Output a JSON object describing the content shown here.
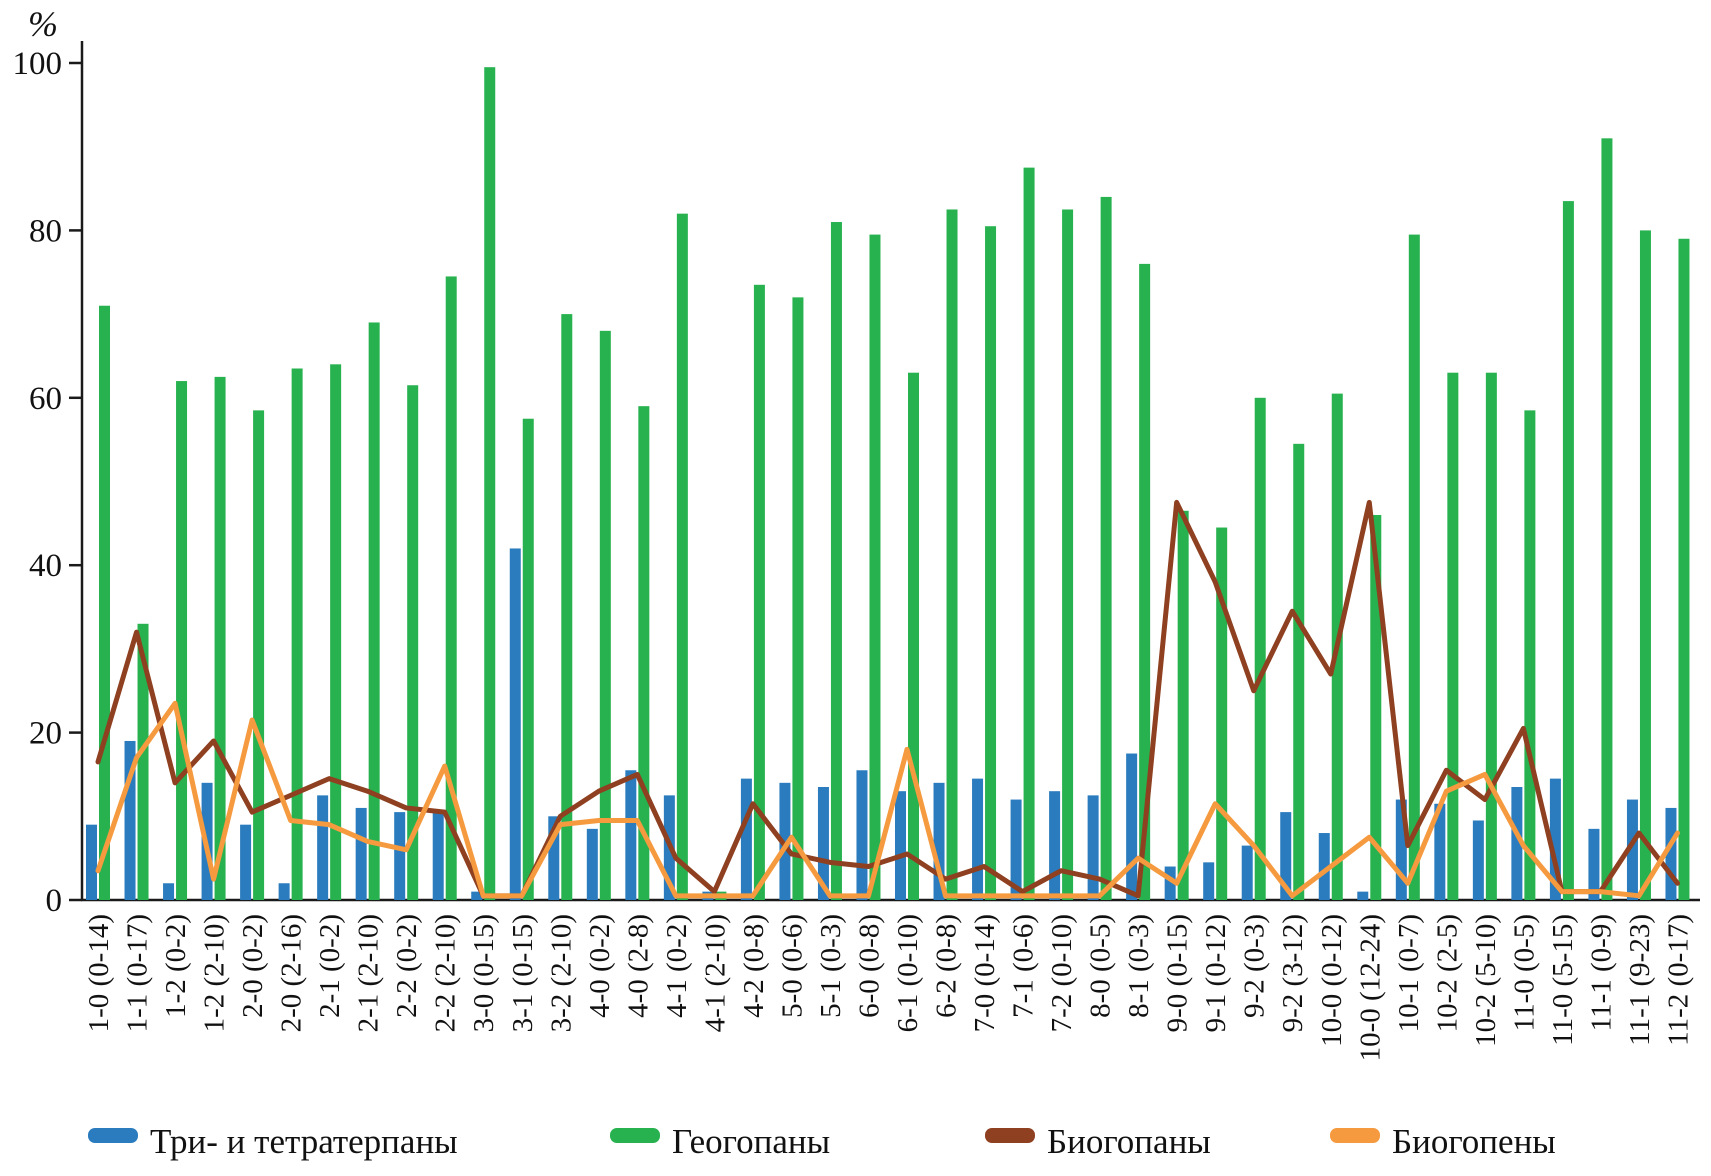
{
  "chart_data": {
    "type": "bar",
    "title": "",
    "xlabel": "",
    "ylabel": "%",
    "ylim": [
      0,
      100
    ],
    "yticks": [
      0,
      20,
      40,
      60,
      80,
      100
    ],
    "grid": false,
    "legend_position": "bottom",
    "categories": [
      "1-0 (0-14)",
      "1-1 (0-17)",
      "1-2 (0-2)",
      "1-2 (2-10)",
      "2-0 (0-2)",
      "2-0 (2-16)",
      "2-1 (0-2)",
      "2-1 (2-10)",
      "2-2 (0-2)",
      "2-2 (2-10)",
      "3-0 (0-15)",
      "3-1 (0-15)",
      "3-2 (2-10)",
      "4-0 (0-2)",
      "4-0 (2-8)",
      "4-1 (0-2)",
      "4-1 (2-10)",
      "4-2 (0-8)",
      "5-0 (0-6)",
      "5-1 (0-3)",
      "6-0 (0-8)",
      "6-1 (0-10)",
      "6-2 (0-8)",
      "7-0 (0-14)",
      "7-1 (0-6)",
      "7-2 (0-10)",
      "8-0 (0-5)",
      "8-1 (0-3)",
      "9-0 (0-15)",
      "9-1 (0-12)",
      "9-2 (0-3)",
      "9-2 (3-12)",
      "10-0 (0-12)",
      "10-0 (12-24)",
      "10-1 (0-7)",
      "10-2 (2-5)",
      "10-2 (5-10)",
      "11-0 (0-5)",
      "11-0 (5-15)",
      "11-1 (0-9)",
      "11-1 (9-23)",
      "11-2 (0-17)"
    ],
    "series": [
      {
        "key": "tri-tetraterpanes",
        "name": "Три- и тетратерпаны",
        "type": "bar",
        "color": "#2a7cbe",
        "values": [
          9,
          19,
          2,
          14,
          9,
          2,
          12.5,
          11,
          10.5,
          10.5,
          1,
          42,
          10,
          8.5,
          15.5,
          12.5,
          1,
          14.5,
          14,
          13.5,
          15.5,
          13,
          14,
          14.5,
          12,
          13,
          12.5,
          17.5,
          4,
          4.5,
          6.5,
          10.5,
          8,
          1,
          12,
          11.5,
          9.5,
          13.5,
          14.5,
          8.5,
          12,
          11
        ]
      },
      {
        "key": "geohopanes",
        "name": "Геогопаны",
        "type": "bar",
        "color": "#27b24f",
        "values": [
          71,
          33,
          62,
          62.5,
          58.5,
          63.5,
          64,
          69,
          61.5,
          74.5,
          99.5,
          57.5,
          70,
          68,
          59,
          82,
          1,
          73.5,
          72,
          81,
          79.5,
          63,
          82.5,
          80.5,
          87.5,
          82.5,
          84,
          76,
          46.5,
          44.5,
          60,
          54.5,
          60.5,
          46,
          79.5,
          63,
          63,
          58.5,
          83.5,
          91,
          80,
          79
        ]
      },
      {
        "key": "biohopanes",
        "name": "Биогопаны",
        "type": "line",
        "color": "#8e4020",
        "values": [
          16.5,
          32,
          14,
          19,
          10.5,
          12.5,
          14.5,
          13,
          11,
          10.5,
          0.5,
          0.5,
          10,
          13,
          15,
          5,
          1,
          11.5,
          5.5,
          4.5,
          4,
          5.5,
          2.5,
          4,
          1,
          3.5,
          2.5,
          0.5,
          47.5,
          38,
          25,
          34.5,
          27,
          47.5,
          6.5,
          15.5,
          12,
          20.5,
          1,
          1,
          8,
          2
        ]
      },
      {
        "key": "biohopenes",
        "name": "Биогопены",
        "type": "line",
        "color": "#f59a3f",
        "values": [
          3.5,
          17,
          23.5,
          2.5,
          21.5,
          9.5,
          9,
          7,
          6,
          16,
          0.5,
          0.5,
          9,
          9.5,
          9.5,
          0.5,
          0.5,
          0.5,
          7.5,
          0.5,
          0.5,
          18,
          0.5,
          0.5,
          0.5,
          0.5,
          0.5,
          5,
          2,
          11.5,
          6.5,
          0.5,
          4,
          7.5,
          2,
          13,
          15,
          6.5,
          1,
          1,
          0.5,
          8
        ]
      }
    ]
  }
}
